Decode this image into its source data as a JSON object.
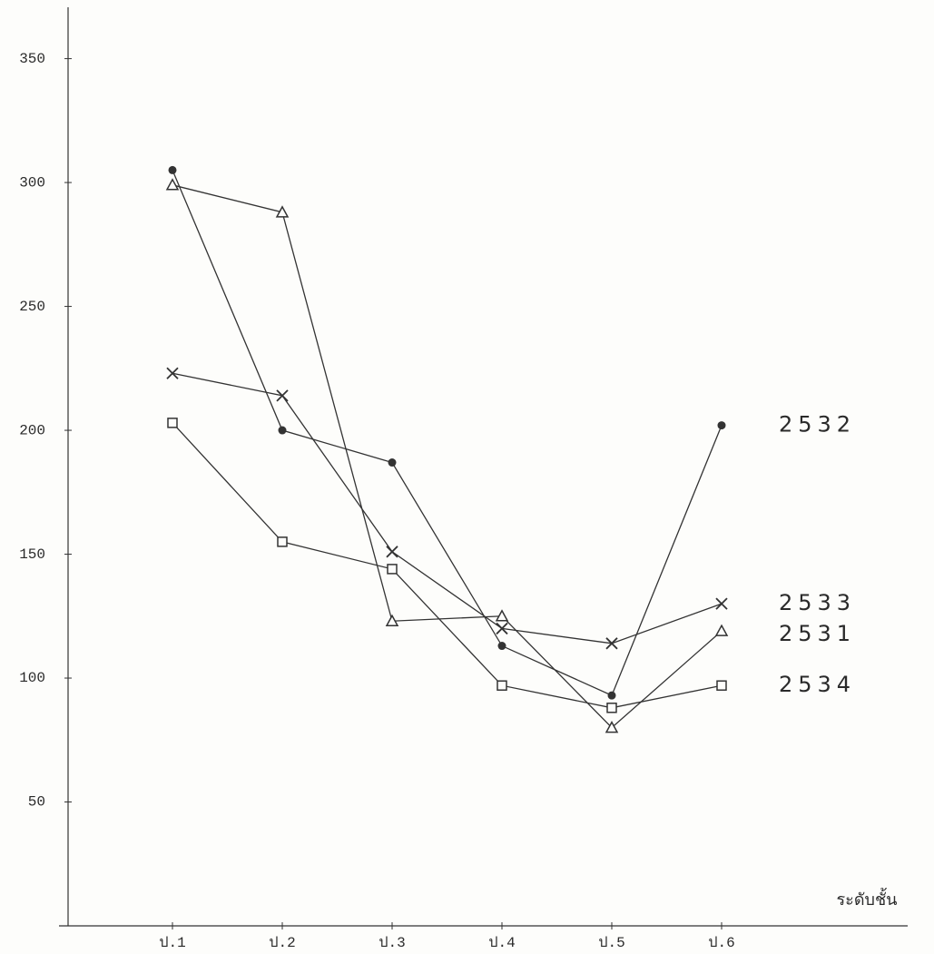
{
  "chart_data": {
    "type": "line",
    "x_label": "ระดับชั้น",
    "categories": [
      "ป.1",
      "ป.2",
      "ป.3",
      "ป.4",
      "ป.5",
      "ป.6"
    ],
    "series": [
      {
        "name": "2532",
        "color": "#333333",
        "marker": "circle",
        "values": [
          305,
          200,
          187,
          113,
          93,
          202
        ]
      },
      {
        "name": "2533",
        "color": "#333333",
        "marker": "x",
        "values": [
          223,
          214,
          151,
          120,
          114,
          130
        ]
      },
      {
        "name": "2531",
        "color": "#333333",
        "marker": "triangle",
        "values": [
          299,
          288,
          123,
          125,
          80,
          119
        ]
      },
      {
        "name": "2534",
        "color": "#333333",
        "marker": "square",
        "values": [
          203,
          155,
          144,
          97,
          88,
          97
        ]
      }
    ],
    "ylim": [
      0,
      370
    ],
    "yticks": [
      50,
      100,
      150,
      200,
      250,
      300,
      350
    ],
    "grid": false
  }
}
